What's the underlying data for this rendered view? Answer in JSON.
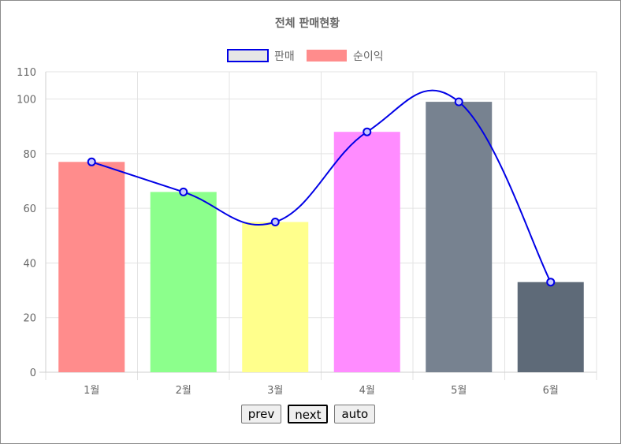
{
  "chart_data": {
    "type": "bar",
    "title": "전체 판매현황",
    "categories": [
      "1월",
      "2월",
      "3월",
      "4월",
      "5월",
      "6월"
    ],
    "ylim": [
      0,
      110
    ],
    "yticks": [
      0,
      20,
      40,
      60,
      80,
      100,
      110
    ],
    "grid": true,
    "legend_position": "top",
    "series": [
      {
        "name": "판매",
        "type": "line",
        "smooth": true,
        "values": [
          77,
          66,
          55,
          88,
          99,
          33
        ],
        "color": "#0000e6",
        "legend_fill": "#e6e6e6"
      },
      {
        "name": "순이익",
        "type": "bar",
        "values": [
          77,
          66,
          55,
          88,
          99,
          33
        ],
        "colors": [
          "#ff8c8c",
          "#8cff8c",
          "#ffff8c",
          "#ff8cff",
          "#778290",
          "#5e6a78"
        ],
        "legend_color": "#ff8c8c"
      }
    ]
  },
  "controls": {
    "prev_label": "prev",
    "next_label": "next",
    "auto_label": "auto"
  }
}
